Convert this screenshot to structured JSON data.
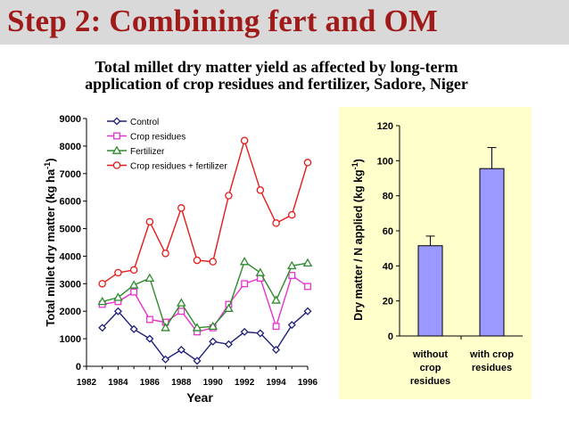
{
  "slide": {
    "title": "Step 2: Combining fert and OM"
  },
  "chart_heading": {
    "line1": "Total millet dry matter yield as affected by long-term",
    "line2": "application of crop residues and fertilizer, Sadore, Niger"
  },
  "chart_data": [
    {
      "type": "line",
      "x": [
        1983,
        1984,
        1985,
        1986,
        1987,
        1988,
        1989,
        1990,
        1991,
        1992,
        1993,
        1994,
        1995,
        1996
      ],
      "series": [
        {
          "name": "Control",
          "color": "#1f1f7a",
          "marker": "diamond",
          "values": [
            1400,
            2000,
            1350,
            1000,
            250,
            600,
            200,
            900,
            800,
            1250,
            1200,
            600,
            1500,
            2000
          ]
        },
        {
          "name": "Crop residues",
          "color": "#e633cc",
          "marker": "square",
          "values": [
            2250,
            2350,
            2700,
            1700,
            1600,
            2000,
            1250,
            1400,
            2250,
            3000,
            3200,
            1450,
            3300,
            2900
          ]
        },
        {
          "name": "Fertilizer",
          "color": "#2e8b2e",
          "marker": "triangle",
          "values": [
            2350,
            2500,
            2950,
            3200,
            1400,
            2300,
            1400,
            1450,
            2100,
            3800,
            3400,
            2400,
            3650,
            3750
          ]
        },
        {
          "name": "Crop residues + fertilizer",
          "color": "#e61a1a",
          "marker": "circle",
          "values": [
            3000,
            3400,
            3500,
            5250,
            4100,
            5750,
            3850,
            3800,
            6200,
            8200,
            6400,
            5200,
            5500,
            7400
          ]
        }
      ],
      "xlabel": "Year",
      "ylabel": "Total millet dry matter  (kg ha",
      "ylabel_sup": "-1",
      "ylabel_close": ")",
      "xlim": [
        1982,
        1996
      ],
      "ylim": [
        0,
        9000
      ],
      "x_ticks": [
        "1982",
        "1984",
        "1986",
        "1988",
        "1990",
        "1992",
        "1994",
        "1996"
      ],
      "y_ticks": [
        "0",
        "1000",
        "2000",
        "3000",
        "4000",
        "5000",
        "6000",
        "7000",
        "8000",
        "9000"
      ],
      "legend_position": "top-left",
      "grid": false
    },
    {
      "type": "bar",
      "categories": [
        [
          "without",
          "crop",
          "residues"
        ],
        [
          "with crop",
          "residues"
        ]
      ],
      "values": [
        51.5,
        95.5
      ],
      "error_plus": [
        5.5,
        12
      ],
      "color": "#9999ff",
      "background": "#ffffcc",
      "ylabel": "Dry matter / N applied (kg kg",
      "ylabel_sup": "-1",
      "ylabel_close": ")",
      "ylim": [
        0,
        120
      ],
      "y_ticks": [
        "0",
        "20",
        "40",
        "60",
        "80",
        "100",
        "120"
      ],
      "grid": false
    }
  ]
}
